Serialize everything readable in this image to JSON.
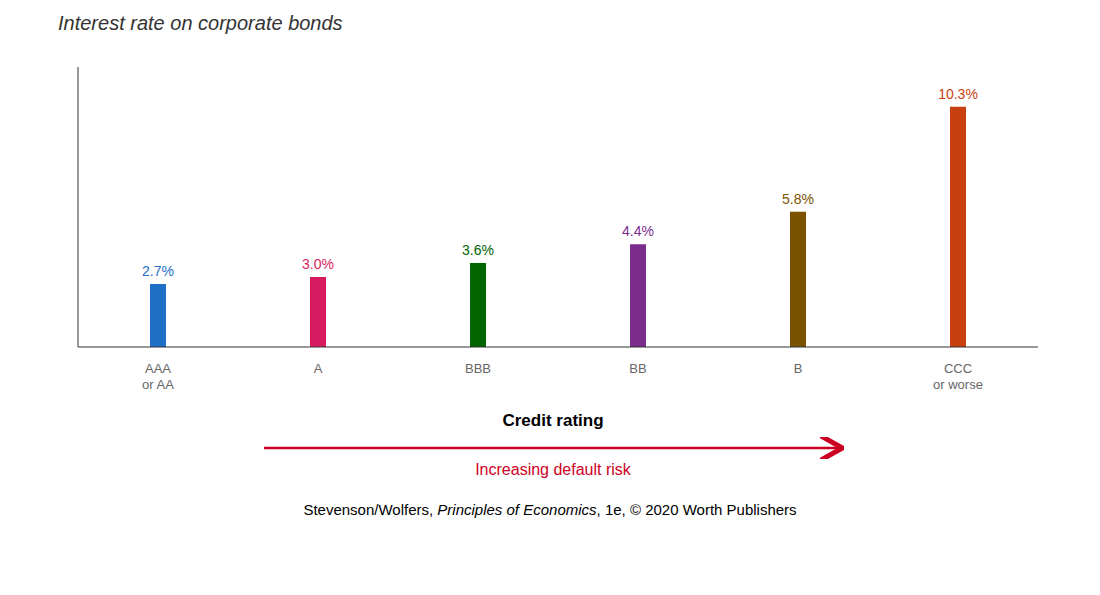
{
  "chart_data": {
    "type": "bar",
    "title": "Interest rate on corporate bonds",
    "categories": [
      "AAA\nor AA",
      "A",
      "BBB",
      "BB",
      "B",
      "CCC\nor worse"
    ],
    "values": [
      2.7,
      3.0,
      3.6,
      4.4,
      5.8,
      10.3
    ],
    "value_labels": [
      "2.7%",
      "3.0%",
      "3.6%",
      "4.4%",
      "5.8%",
      "10.3%"
    ],
    "data_labels": true,
    "colors": [
      "#1f6fc6",
      "#d81b60",
      "#006400",
      "#7b2d8b",
      "#7a5200",
      "#c94010"
    ],
    "ylim": [
      0,
      12
    ],
    "tick_labels": "x",
    "grid": false,
    "xlabel": "Credit rating",
    "annotations": [
      {
        "text": "Increasing default risk",
        "color": "#cc0022"
      }
    ],
    "footer": [
      "Stevenson/Wolfers, ",
      "Principles of Economics",
      ", 1e, © 2020 Worth Publishers"
    ]
  }
}
